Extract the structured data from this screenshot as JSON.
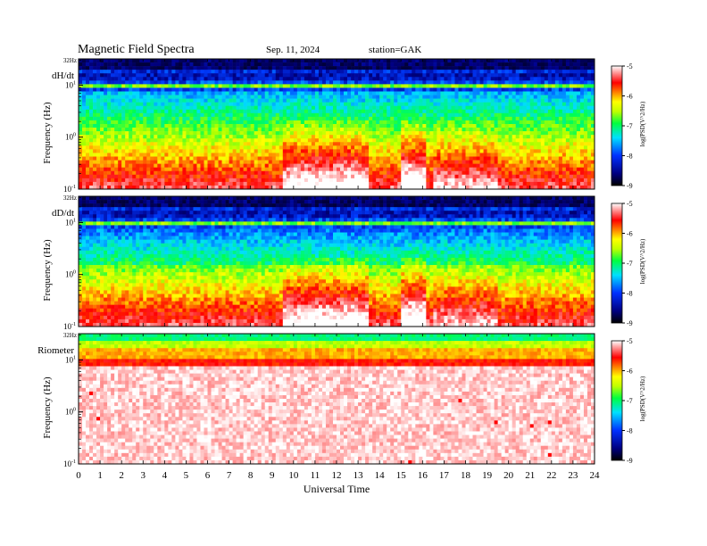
{
  "header": {
    "title": "Magnetic Field Spectra",
    "date": "Sep. 11, 2024",
    "station": "station=GAK"
  },
  "chart_data": [
    {
      "type": "heatmap",
      "panel_label": "dH/dt",
      "ylabel": "Frequency (Hz)",
      "yscale": "log",
      "y_top_label": "32Hz",
      "yticks": [
        {
          "exp": "-1",
          "value": 0.1
        },
        {
          "exp": "0",
          "value": 1
        },
        {
          "exp": "1",
          "value": 10
        }
      ],
      "ylim": [
        0.1,
        32
      ],
      "xlim": [
        0,
        24
      ],
      "colorbar": {
        "label": "log(PSD(V^2/Hz)",
        "ticks": [
          "-5",
          "-6",
          "-7",
          "-8",
          "-9"
        ],
        "range": [
          -9,
          -5
        ]
      }
    },
    {
      "type": "heatmap",
      "panel_label": "dD/dt",
      "ylabel": "Frequency (Hz)",
      "yscale": "log",
      "y_top_label": "32Hz",
      "yticks": [
        {
          "exp": "-1",
          "value": 0.1
        },
        {
          "exp": "0",
          "value": 1
        },
        {
          "exp": "1",
          "value": 10
        }
      ],
      "ylim": [
        0.1,
        32
      ],
      "xlim": [
        0,
        24
      ],
      "colorbar": {
        "label": "log(PSD(V^2/Hz)",
        "ticks": [
          "-5",
          "-6",
          "-7",
          "-8",
          "-9"
        ],
        "range": [
          -9,
          -5
        ]
      }
    },
    {
      "type": "heatmap",
      "panel_label": "Riometer",
      "ylabel": "Frequency (Hz)",
      "yscale": "log",
      "y_top_label": "32Hz",
      "yticks": [
        {
          "exp": "-1",
          "value": 0.1
        },
        {
          "exp": "0",
          "value": 1
        },
        {
          "exp": "1",
          "value": 10
        }
      ],
      "ylim": [
        0.1,
        32
      ],
      "xlim": [
        0,
        24
      ],
      "colorbar": {
        "label": "log(PSD(V^2/Hz)",
        "ticks": [
          "-5",
          "-6",
          "-7",
          "-8",
          "-9"
        ],
        "range": [
          -9,
          -5
        ]
      }
    }
  ],
  "x_axis": {
    "label": "Universal Time",
    "ticks": [
      "0",
      "1",
      "2",
      "3",
      "4",
      "5",
      "6",
      "7",
      "8",
      "9",
      "10",
      "11",
      "12",
      "13",
      "14",
      "15",
      "16",
      "17",
      "18",
      "19",
      "20",
      "21",
      "22",
      "23",
      "24"
    ]
  }
}
